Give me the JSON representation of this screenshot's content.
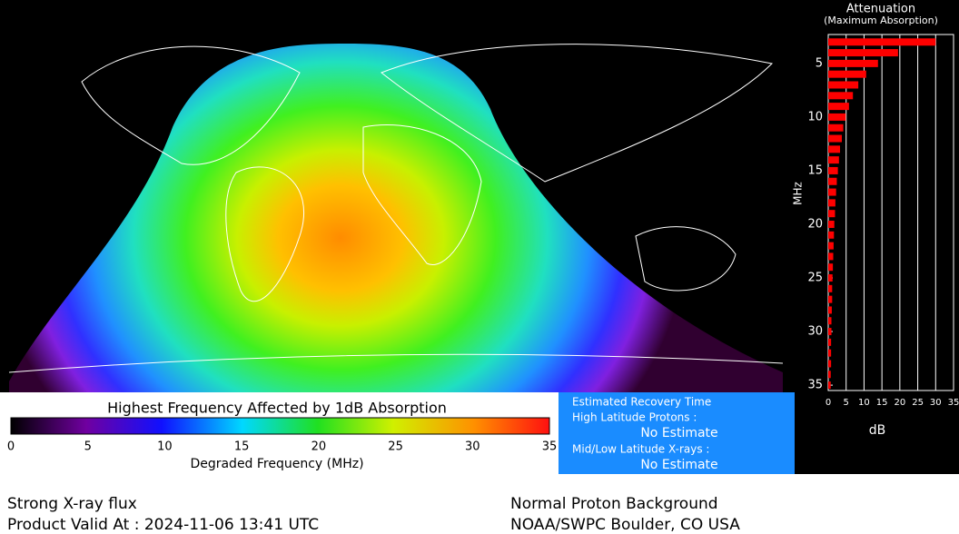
{
  "map": {
    "title": "Highest Frequency Affected by 1dB Absorption"
  },
  "colorbar": {
    "title": "Highest Frequency Affected by 1dB Absorption",
    "xlabel": "Degraded Frequency (MHz)",
    "range": [
      0,
      35
    ],
    "ticks": [
      0,
      5,
      10,
      15,
      20,
      25,
      30,
      35
    ]
  },
  "recovery": {
    "title": "Estimated Recovery Time",
    "high_label": "High Latitude Protons :",
    "high_value": "No Estimate",
    "low_label": "Mid/Low Latitude X-rays :",
    "low_value": "No Estimate"
  },
  "footer": {
    "left": [
      "Strong X-ray flux",
      "Product Valid At : 2024-11-06 13:41 UTC"
    ],
    "right": [
      "Normal Proton Background",
      "NOAA/SWPC Boulder, CO USA"
    ]
  },
  "chart_data": {
    "type": "bar",
    "orientation": "horizontal",
    "title": "Attenuation",
    "subtitle": "(Maximum Absorption)",
    "y_label": "MHz",
    "x_label": "dB",
    "color": "#ff0000",
    "grid": true,
    "y_inverted": true,
    "y": [
      3,
      4,
      5,
      6,
      7,
      8,
      9,
      10,
      11,
      12,
      13,
      14,
      15,
      16,
      17,
      18,
      19,
      20,
      21,
      22,
      23,
      24,
      25,
      26,
      27,
      28,
      29,
      30,
      31,
      32,
      33,
      34,
      35
    ],
    "values": [
      30,
      19.5,
      13.9,
      10.6,
      8.4,
      6.9,
      5.8,
      4.9,
      4.2,
      3.8,
      3.3,
      3.0,
      2.7,
      2.4,
      2.2,
      2.0,
      1.9,
      1.7,
      1.6,
      1.5,
      1.4,
      1.3,
      1.2,
      1.1,
      1.1,
      1.0,
      0.9,
      0.9,
      0.8,
      0.8,
      0.8,
      0.7,
      0.7
    ],
    "xlim": [
      0,
      35
    ],
    "xticks": [
      0,
      5,
      10,
      15,
      20,
      25,
      30,
      35
    ],
    "ylim": [
      2.3,
      35.5
    ],
    "yticks": [
      5,
      10,
      15,
      20,
      25,
      30,
      35
    ]
  }
}
